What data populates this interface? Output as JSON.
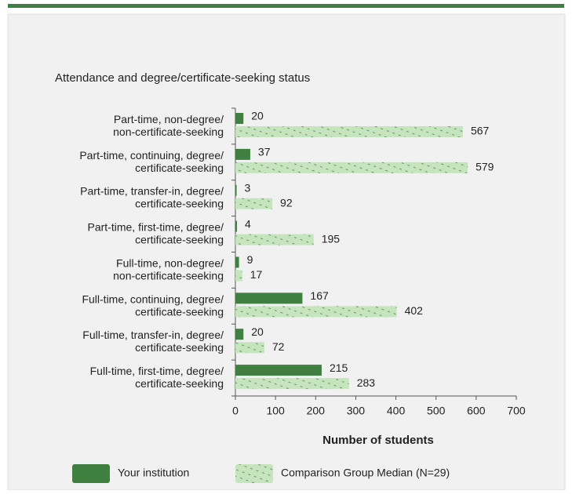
{
  "chart_data": {
    "type": "bar",
    "orientation": "horizontal",
    "title": "Attendance and degree/certificate-seeking status",
    "categories": [
      [
        "Part-time, non-degree/",
        "non-certificate-seeking"
      ],
      [
        "Part-time, continuing, degree/",
        "certificate-seeking"
      ],
      [
        "Part-time, transfer-in, degree/",
        "certificate-seeking"
      ],
      [
        "Part-time, first-time, degree/",
        "certificate-seeking"
      ],
      [
        "Full-time, non-degree/",
        "non-certificate-seeking"
      ],
      [
        "Full-time, continuing, degree/",
        "certificate-seeking"
      ],
      [
        "Full-time, transfer-in, degree/",
        "certificate-seeking"
      ],
      [
        "Full-time, first-time, degree/",
        "certificate-seeking"
      ]
    ],
    "series": [
      {
        "name": "Your institution",
        "color": "#3f7f3f",
        "values": [
          20,
          37,
          3,
          4,
          9,
          167,
          20,
          215
        ]
      },
      {
        "name": "Comparison Group Median (N=29)",
        "color": "#c6e5bf",
        "values": [
          567,
          579,
          92,
          195,
          17,
          402,
          72,
          283
        ]
      }
    ],
    "xlim": [
      0,
      700
    ],
    "xticks": [
      0,
      100,
      200,
      300,
      400,
      500,
      600,
      700
    ],
    "xlabel": "Number of students"
  }
}
